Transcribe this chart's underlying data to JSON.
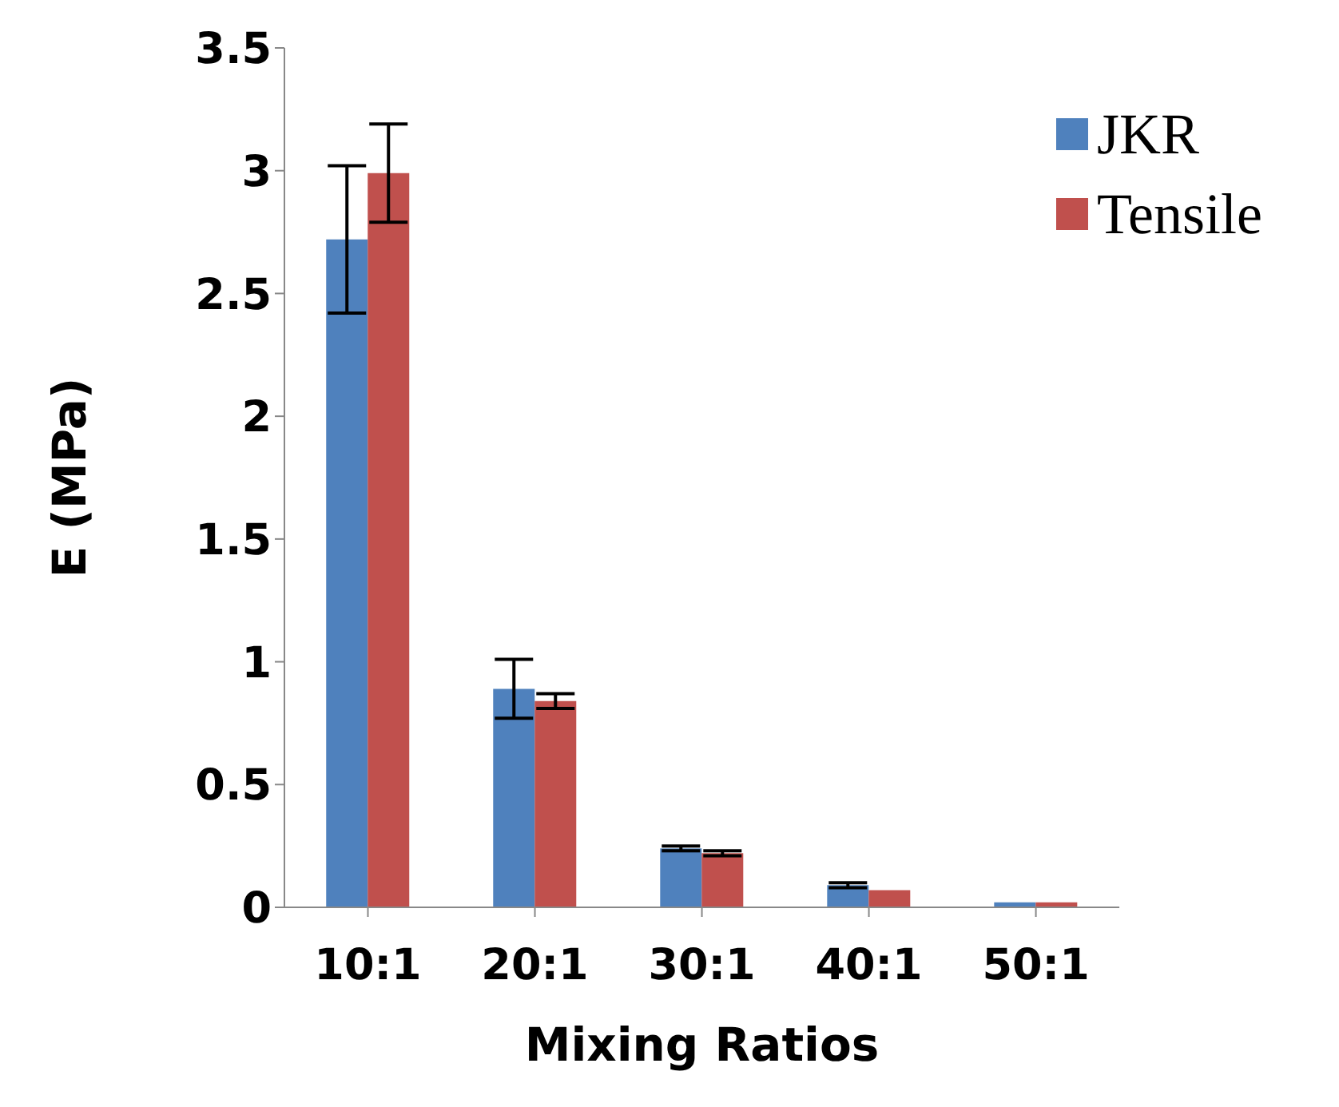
{
  "chart_data": {
    "type": "bar",
    "xlabel": "Mixing Ratios",
    "ylabel": "E (MPa)",
    "categories": [
      "10:1",
      "20:1",
      "30:1",
      "40:1",
      "50:1"
    ],
    "series": [
      {
        "name": "JKR",
        "color": "#4f81bd",
        "values": [
          2.72,
          0.89,
          0.24,
          0.09,
          0.02
        ],
        "errors": [
          0.3,
          0.12,
          0.01,
          0.01,
          null
        ]
      },
      {
        "name": "Tensile",
        "color": "#c0504d",
        "values": [
          2.99,
          0.84,
          0.22,
          0.07,
          0.02
        ],
        "errors": [
          0.2,
          0.03,
          0.01,
          null,
          null
        ]
      }
    ],
    "ylim": [
      0,
      3.5
    ],
    "yticks": [
      0,
      0.5,
      1,
      1.5,
      2,
      2.5,
      3,
      3.5
    ],
    "grid": false,
    "legend": "top right"
  }
}
